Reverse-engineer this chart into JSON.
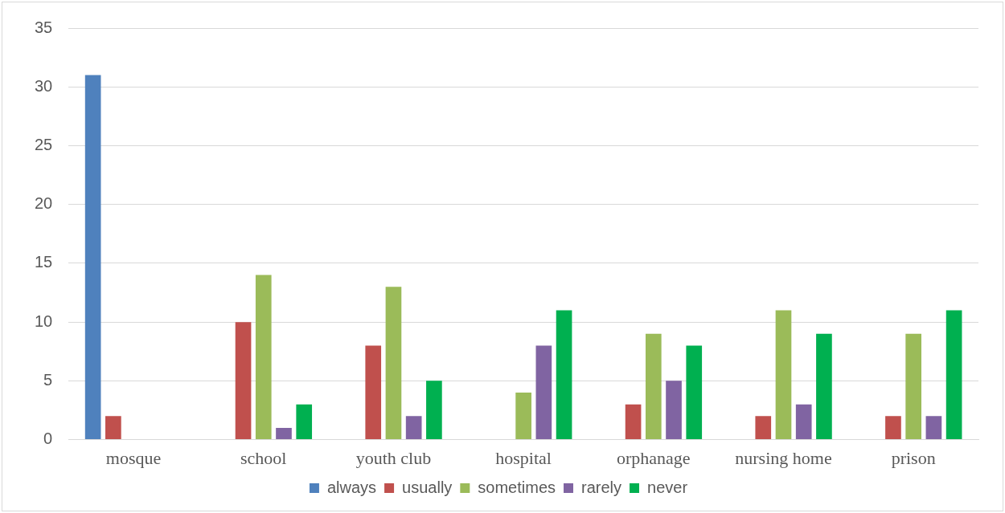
{
  "chart_data": {
    "type": "bar",
    "categories": [
      "mosque",
      "school",
      "youth club",
      "hospital",
      "orphanage",
      "nursing home",
      "prison"
    ],
    "series": [
      {
        "name": "always",
        "color": "#4f81bd",
        "values": [
          31,
          0,
          0,
          0,
          0,
          0,
          0
        ]
      },
      {
        "name": "usually",
        "color": "#c0504d",
        "values": [
          2,
          10,
          8,
          0,
          3,
          2,
          2
        ]
      },
      {
        "name": "sometimes",
        "color": "#9bbb59",
        "values": [
          0,
          14,
          13,
          4,
          9,
          11,
          9
        ]
      },
      {
        "name": "rarely",
        "color": "#8064a2",
        "values": [
          0,
          1,
          2,
          8,
          5,
          3,
          2
        ]
      },
      {
        "name": "never",
        "color": "#00b050",
        "values": [
          0,
          3,
          5,
          11,
          8,
          9,
          11
        ]
      }
    ],
    "ylim": [
      0,
      35
    ],
    "yticks": [
      0,
      5,
      10,
      15,
      20,
      25,
      30,
      35
    ],
    "grid": "y",
    "legend": "bottom"
  }
}
